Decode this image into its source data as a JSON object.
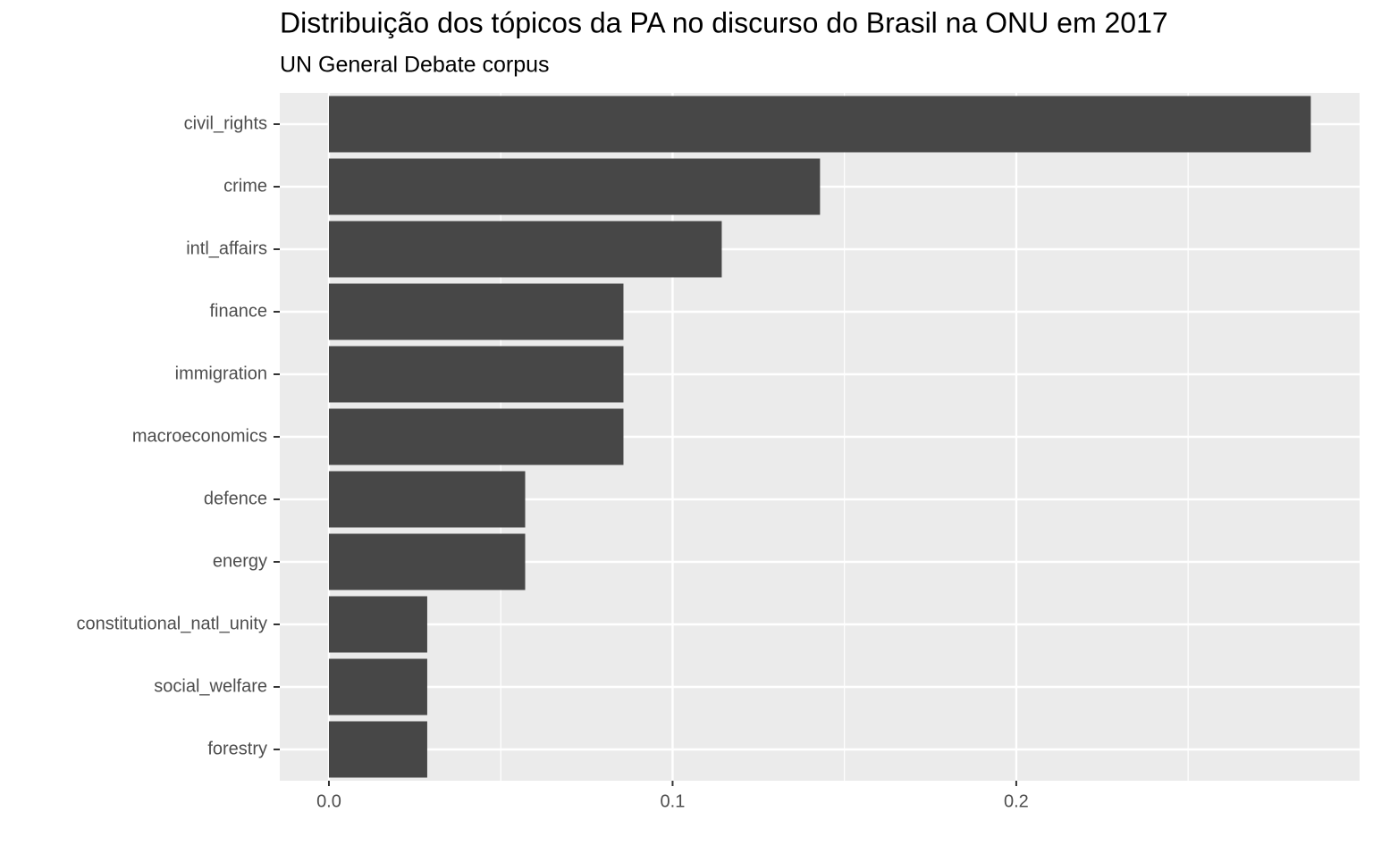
{
  "chart_data": {
    "type": "barh",
    "title": "Distribuição dos tópicos da PA no discurso do Brasil na ONU em 2017",
    "subtitle": "UN General Debate corpus",
    "categories": [
      "civil_rights",
      "crime",
      "intl_affairs",
      "finance",
      "immigration",
      "macroeconomics",
      "defence",
      "energy",
      "constitutional_natl_unity",
      "social_welfare",
      "forestry"
    ],
    "values": [
      0.2857,
      0.1429,
      0.1143,
      0.0857,
      0.0857,
      0.0857,
      0.0571,
      0.0571,
      0.0286,
      0.0286,
      0.0286
    ],
    "color": "#474747",
    "xlim": [
      -0.0143,
      0.2999
    ],
    "xticks": [
      {
        "value": 0,
        "label": "0.0"
      },
      0.1,
      0.2
    ],
    "xminor": [
      0.05,
      0.15,
      0.25
    ],
    "grid": true
  }
}
